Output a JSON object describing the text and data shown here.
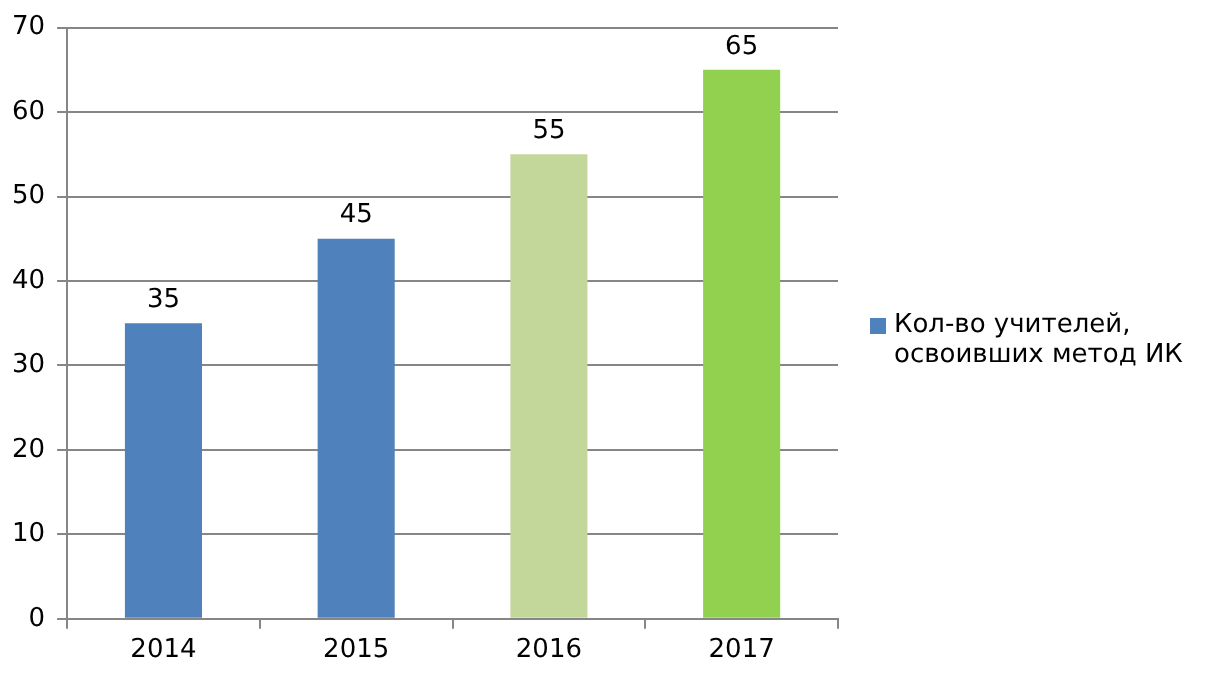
{
  "chart_data": {
    "type": "bar",
    "categories": [
      "2014",
      "2015",
      "2016",
      "2017"
    ],
    "series": [
      {
        "name": "Кол-во учителей, освоивших метод ИК",
        "color": "#4f81bd",
        "colors": [
          "#4f81bd",
          "#4f81bd",
          "#c4d79b",
          "#92d050"
        ],
        "values": [
          35,
          45,
          55,
          65
        ]
      }
    ],
    "ylim": [
      0,
      70
    ],
    "yticks": [
      0,
      10,
      20,
      30,
      40,
      50,
      60,
      70
    ],
    "grid": "y",
    "legend": "right",
    "data_labels": true
  }
}
